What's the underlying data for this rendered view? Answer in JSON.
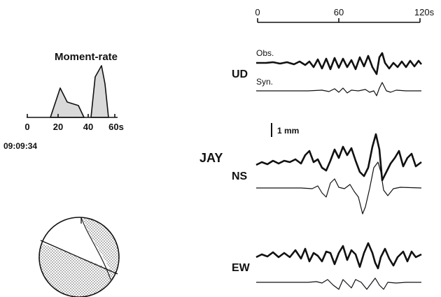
{
  "time_scale": {
    "tick_labels": [
      "0",
      "60",
      "120s"
    ]
  },
  "moment_rate": {
    "title": "Moment-rate",
    "tick_labels": [
      "0",
      "20",
      "40",
      "60s"
    ],
    "origin_time": "09:09:34"
  },
  "station": {
    "name": "JAY",
    "scale_label": "1 mm",
    "components": [
      {
        "name": "UD",
        "obs_label": "Obs.",
        "syn_label": "Syn."
      },
      {
        "name": "NS"
      },
      {
        "name": "EW"
      }
    ]
  },
  "colors": {
    "ink": "#111111",
    "source_fill": "#d9d9d9",
    "stipple": "#555555"
  }
}
